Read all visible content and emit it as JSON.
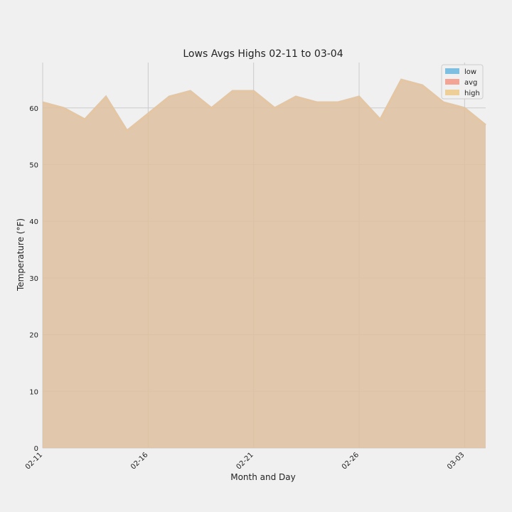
{
  "chart_data": {
    "type": "area",
    "title": "Lows Avgs Highs 02-11 to 03-04",
    "xlabel": "Month and Day",
    "ylabel": "Temperature (°F)",
    "ylim": [
      0,
      68
    ],
    "yticks": [
      0,
      10,
      20,
      30,
      40,
      50,
      60
    ],
    "categories": [
      "02-11",
      "02-12",
      "02-13",
      "02-14",
      "02-15",
      "02-16",
      "02-17",
      "02-18",
      "02-19",
      "02-20",
      "02-21",
      "02-22",
      "02-23",
      "02-24",
      "02-25",
      "02-26",
      "02-27",
      "02-28",
      "03-01",
      "03-02",
      "03-03",
      "03-04"
    ],
    "xtick_labels": [
      "02-11",
      "02-16",
      "02-21",
      "02-26",
      "03-03"
    ],
    "series": [
      {
        "name": "low",
        "color": "#7dbfe0",
        "values": [
          61,
          60,
          58,
          62,
          56,
          59,
          62,
          63,
          60,
          63,
          63,
          60,
          62,
          61,
          61,
          62,
          58,
          65,
          64,
          61,
          60,
          57
        ]
      },
      {
        "name": "avg",
        "color": "#f4a494",
        "values": [
          61,
          60,
          58,
          62,
          56,
          59,
          62,
          63,
          60,
          63,
          63,
          60,
          62,
          61,
          61,
          62,
          58,
          65,
          64,
          61,
          60,
          57
        ]
      },
      {
        "name": "high",
        "color": "#eecf98",
        "values": [
          61,
          60,
          58,
          62,
          56,
          59,
          62,
          63,
          60,
          63,
          63,
          60,
          62,
          61,
          61,
          62,
          58,
          65,
          64,
          61,
          60,
          57
        ]
      }
    ],
    "legend": [
      "low",
      "avg",
      "high"
    ],
    "legend_position": "top-right",
    "grid": true
  }
}
